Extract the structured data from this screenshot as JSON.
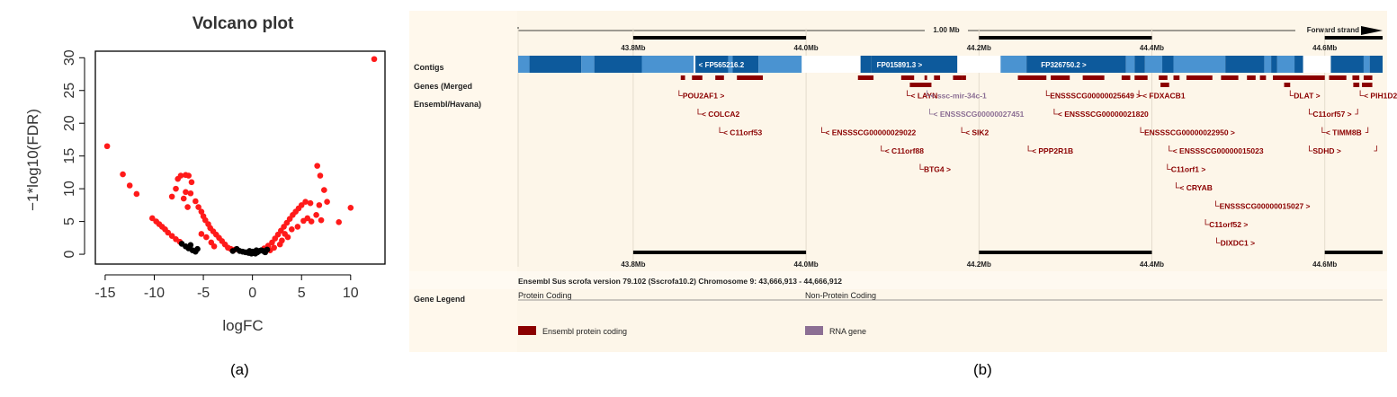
{
  "captions": {
    "a": "(a)",
    "b": "(b)"
  },
  "colors": {
    "sig_point": "#ff1a1a",
    "nonsig_point": "#000000",
    "protein_coding": "#8b0000",
    "rna_gene": "#8c6f94",
    "contig_dark": "#0d5a9c",
    "contig_light": "#4a93d1",
    "track_bg": "#fdf6e9",
    "label_bg": "#fff8ec"
  },
  "chart_data": [
    {
      "type": "scatter",
      "title": "Volcano plot",
      "xlabel": "logFC",
      "ylabel": "−1*log10(FDR)",
      "xlim": [
        -16,
        13.5
      ],
      "ylim": [
        -1.5,
        31
      ],
      "xticks": [
        -15,
        -10,
        -5,
        0,
        5,
        10
      ],
      "xtick_labels": [
        "-15",
        "-10",
        "-5",
        "0",
        "5",
        "10"
      ],
      "yticks": [
        0,
        5,
        10,
        15,
        20,
        25,
        30
      ],
      "yticks_labels": [
        "0",
        "5",
        "10",
        "15",
        "20",
        "25",
        "30"
      ],
      "series": [
        {
          "name": "significant",
          "color": "#ff1a1a",
          "points": [
            [
              -14.8,
              16.5
            ],
            [
              -13.2,
              12.2
            ],
            [
              -12.5,
              10.5
            ],
            [
              -11.8,
              9.2
            ],
            [
              -10.2,
              5.5
            ],
            [
              -9.8,
              5.0
            ],
            [
              -9.5,
              4.6
            ],
            [
              -9.2,
              4.2
            ],
            [
              -8.9,
              3.8
            ],
            [
              -8.6,
              3.3
            ],
            [
              -8.2,
              2.8
            ],
            [
              -7.8,
              2.3
            ],
            [
              -7.4,
              1.9
            ],
            [
              -8.2,
              8.8
            ],
            [
              -7.8,
              10.0
            ],
            [
              -7.6,
              11.5
            ],
            [
              -7.3,
              12.0
            ],
            [
              -6.8,
              12.1
            ],
            [
              -6.5,
              12.0
            ],
            [
              -6.2,
              11.0
            ],
            [
              -7.0,
              8.5
            ],
            [
              -6.6,
              7.2
            ],
            [
              -6.8,
              9.5
            ],
            [
              -6.3,
              9.3
            ],
            [
              -5.8,
              8.1
            ],
            [
              -5.5,
              7.2
            ],
            [
              -5.2,
              6.5
            ],
            [
              -5.0,
              5.8
            ],
            [
              -4.8,
              5.2
            ],
            [
              -4.5,
              4.6
            ],
            [
              -4.3,
              4.0
            ],
            [
              -4.0,
              3.5
            ],
            [
              -3.7,
              3.0
            ],
            [
              -3.4,
              2.5
            ],
            [
              -3.1,
              2.0
            ],
            [
              -5.2,
              3.1
            ],
            [
              -4.7,
              2.6
            ],
            [
              -4.2,
              1.8
            ],
            [
              -3.9,
              1.2
            ],
            [
              -2.8,
              1.5
            ],
            [
              -2.5,
              1.0
            ],
            [
              -2.2,
              0.8
            ],
            [
              -1.8,
              0.7
            ],
            [
              1.2,
              0.9
            ],
            [
              1.6,
              1.3
            ],
            [
              2.0,
              1.8
            ],
            [
              2.3,
              2.4
            ],
            [
              2.6,
              3.0
            ],
            [
              2.9,
              3.6
            ],
            [
              3.2,
              4.2
            ],
            [
              3.5,
              4.8
            ],
            [
              3.8,
              5.4
            ],
            [
              4.1,
              6.0
            ],
            [
              4.4,
              6.5
            ],
            [
              4.7,
              7.0
            ],
            [
              5.0,
              7.5
            ],
            [
              5.4,
              8.0
            ],
            [
              5.9,
              7.8
            ],
            [
              1.8,
              0.6
            ],
            [
              2.2,
              1.0
            ],
            [
              2.8,
              1.5
            ],
            [
              3.0,
              2.1
            ],
            [
              3.6,
              2.6
            ],
            [
              3.3,
              3.1
            ],
            [
              4.0,
              3.8
            ],
            [
              4.6,
              4.2
            ],
            [
              5.2,
              5.1
            ],
            [
              5.6,
              5.5
            ],
            [
              6.0,
              5.0
            ],
            [
              6.5,
              6.0
            ],
            [
              6.8,
              7.5
            ],
            [
              6.6,
              13.5
            ],
            [
              6.9,
              12.0
            ],
            [
              7.3,
              9.8
            ],
            [
              7.6,
              8.0
            ],
            [
              7.0,
              5.2
            ],
            [
              8.8,
              4.9
            ],
            [
              10.0,
              7.1
            ],
            [
              12.4,
              29.8
            ]
          ]
        },
        {
          "name": "not significant",
          "color": "#000000",
          "points": [
            [
              -7.2,
              1.6
            ],
            [
              -6.8,
              1.2
            ],
            [
              -6.5,
              0.9
            ],
            [
              -6.1,
              0.6
            ],
            [
              -5.8,
              0.4
            ],
            [
              -6.3,
              1.4
            ],
            [
              -5.6,
              0.8
            ],
            [
              -2.0,
              0.5
            ],
            [
              -1.6,
              0.8
            ],
            [
              -1.3,
              0.5
            ],
            [
              -1.0,
              0.4
            ],
            [
              -0.7,
              0.3
            ],
            [
              -0.4,
              0.2
            ],
            [
              -0.1,
              0.1
            ],
            [
              0.1,
              0.2
            ],
            [
              0.3,
              0.1
            ],
            [
              0.5,
              0.3
            ],
            [
              0.7,
              0.5
            ],
            [
              0.9,
              0.6
            ],
            [
              1.1,
              0.5
            ],
            [
              1.3,
              0.3
            ],
            [
              0.4,
              0.6
            ],
            [
              -0.3,
              0.5
            ],
            [
              0.0,
              0.4
            ],
            [
              1.5,
              0.7
            ]
          ]
        }
      ]
    },
    {
      "type": "genome-track",
      "scale_label": "1.00 Mb",
      "strand_label": "Forward strand",
      "region_start": 43666913,
      "region_end": 44666912,
      "position_ticks": [
        {
          "pos": 43800000,
          "label": "43.8Mb"
        },
        {
          "pos": 44000000,
          "label": "44.0Mb"
        },
        {
          "pos": 44200000,
          "label": "44.2Mb"
        },
        {
          "pos": 44400000,
          "label": "44.4Mb"
        },
        {
          "pos": 44600000,
          "label": "44.6Mb"
        }
      ],
      "track_labels": {
        "contigs": "Contigs",
        "genes_line1": "Genes (Merged",
        "genes_line2": "Ensembl/Havana)"
      },
      "contig_blocks": [
        {
          "start": 43666913,
          "end": 43680000,
          "tone": "light"
        },
        {
          "start": 43680000,
          "end": 43740000,
          "tone": "dark"
        },
        {
          "start": 43740000,
          "end": 43755000,
          "tone": "light"
        },
        {
          "start": 43755000,
          "end": 43810000,
          "tone": "dark"
        },
        {
          "start": 43810000,
          "end": 43870000,
          "tone": "light"
        },
        {
          "start": 43870000,
          "end": 43872000,
          "tone": "white"
        },
        {
          "start": 43872000,
          "end": 43910000,
          "tone": "dark"
        },
        {
          "start": 43910000,
          "end": 43915000,
          "tone": "light"
        },
        {
          "start": 43915000,
          "end": 43945000,
          "tone": "dark"
        },
        {
          "start": 43945000,
          "end": 43995000,
          "tone": "light"
        },
        {
          "start": 43995000,
          "end": 44063000,
          "tone": "white"
        },
        {
          "start": 44063000,
          "end": 44075000,
          "tone": "dark"
        },
        {
          "start": 44075000,
          "end": 44175000,
          "tone": "dark"
        },
        {
          "start": 44175000,
          "end": 44225000,
          "tone": "white"
        },
        {
          "start": 44225000,
          "end": 44255000,
          "tone": "light"
        },
        {
          "start": 44255000,
          "end": 44370000,
          "tone": "dark"
        },
        {
          "start": 44370000,
          "end": 44380000,
          "tone": "light"
        },
        {
          "start": 44380000,
          "end": 44392000,
          "tone": "dark"
        },
        {
          "start": 44392000,
          "end": 44412000,
          "tone": "light"
        },
        {
          "start": 44412000,
          "end": 44425000,
          "tone": "dark"
        },
        {
          "start": 44425000,
          "end": 44485000,
          "tone": "light"
        },
        {
          "start": 44485000,
          "end": 44530000,
          "tone": "dark"
        },
        {
          "start": 44530000,
          "end": 44538000,
          "tone": "light"
        },
        {
          "start": 44538000,
          "end": 44545000,
          "tone": "dark"
        },
        {
          "start": 44545000,
          "end": 44565000,
          "tone": "light"
        },
        {
          "start": 44565000,
          "end": 44575000,
          "tone": "dark"
        },
        {
          "start": 44575000,
          "end": 44607000,
          "tone": "white"
        },
        {
          "start": 44607000,
          "end": 44645000,
          "tone": "dark"
        },
        {
          "start": 44645000,
          "end": 44652000,
          "tone": "light"
        },
        {
          "start": 44652000,
          "end": 44666912,
          "tone": "dark"
        }
      ],
      "contig_labels": [
        {
          "text": "< FP565216.2",
          "pos": 43902000
        },
        {
          "text": "FP015891.3 >",
          "pos": 44108000
        },
        {
          "text": "FP326750.2 >",
          "pos": 44298000
        }
      ],
      "gene_blocks": [
        {
          "start": 43855000,
          "end": 43860000
        },
        {
          "start": 43868000,
          "end": 43880000
        },
        {
          "start": 43895000,
          "end": 43905000
        },
        {
          "start": 43920000,
          "end": 43950000
        },
        {
          "start": 44060000,
          "end": 44078000
        },
        {
          "start": 44110000,
          "end": 44125000
        },
        {
          "start": 44137000,
          "end": 44140000
        },
        {
          "start": 44148000,
          "end": 44155000
        },
        {
          "start": 44170000,
          "end": 44180000
        },
        {
          "start": 44180000,
          "end": 44185000
        },
        {
          "start": 44245000,
          "end": 44278000
        },
        {
          "start": 44283000,
          "end": 44305000
        },
        {
          "start": 44320000,
          "end": 44345000
        },
        {
          "start": 44365000,
          "end": 44375000
        },
        {
          "start": 44380000,
          "end": 44395000
        },
        {
          "start": 44408000,
          "end": 44418000
        },
        {
          "start": 44425000,
          "end": 44432000
        },
        {
          "start": 44440000,
          "end": 44470000
        },
        {
          "start": 44480000,
          "end": 44500000
        },
        {
          "start": 44510000,
          "end": 44520000
        },
        {
          "start": 44525000,
          "end": 44532000
        },
        {
          "start": 44540000,
          "end": 44600000
        },
        {
          "start": 44605000,
          "end": 44625000
        },
        {
          "start": 44632000,
          "end": 44640000
        },
        {
          "start": 44645000,
          "end": 44655000
        },
        {
          "start": 44633000,
          "end": 44640000,
          "row": 2
        },
        {
          "start": 44643000,
          "end": 44655000,
          "row": 2
        },
        {
          "start": 44120000,
          "end": 44145000,
          "row": 2
        },
        {
          "start": 44410000,
          "end": 44420000,
          "row": 2
        },
        {
          "start": 44553000,
          "end": 44560000,
          "row": 2
        }
      ],
      "gene_labels": [
        {
          "text": "POU2AF1 >",
          "pos": 43853000,
          "row": 1,
          "kind": "protein"
        },
        {
          "text": "< COLCA2",
          "pos": 43875000,
          "row": 2,
          "kind": "protein"
        },
        {
          "text": "< C11orf53",
          "pos": 43900000,
          "row": 3,
          "kind": "protein"
        },
        {
          "text": "< LAYN",
          "pos": 44117000,
          "row": 1,
          "kind": "protein"
        },
        {
          "text": "< ssc-mir-34c-1",
          "pos": 44140000,
          "row": 1,
          "kind": "rna"
        },
        {
          "text": "< ENSSSCG00000027451",
          "pos": 44143000,
          "row": 2,
          "kind": "rna"
        },
        {
          "text": "< ENSSSCG00000029022",
          "pos": 44018000,
          "row": 3,
          "kind": "protein"
        },
        {
          "text": "< SIK2",
          "pos": 44180000,
          "row": 3,
          "kind": "protein"
        },
        {
          "text": "< C11orf88",
          "pos": 44087000,
          "row": 4,
          "kind": "protein"
        },
        {
          "text": "< PPP2R1B",
          "pos": 44257000,
          "row": 4,
          "kind": "protein"
        },
        {
          "text": "BTG4 >",
          "pos": 44132000,
          "row": 5,
          "kind": "protein"
        },
        {
          "text": "ENSSSCG00000025649 >",
          "pos": 44278000,
          "row": 1,
          "kind": "protein"
        },
        {
          "text": "< FDXACB1",
          "pos": 44385000,
          "row": 1,
          "kind": "protein"
        },
        {
          "text": "< ENSSSCG00000021820",
          "pos": 44287000,
          "row": 2,
          "kind": "protein"
        },
        {
          "text": "ENSSSCG00000022950 >",
          "pos": 44387000,
          "row": 3,
          "kind": "protein"
        },
        {
          "text": "< ENSSSCG00000015023",
          "pos": 44420000,
          "row": 4,
          "kind": "protein"
        },
        {
          "text": "C11orf1 >",
          "pos": 44418000,
          "row": 5,
          "kind": "protein"
        },
        {
          "text": "< CRYAB",
          "pos": 44428000,
          "row": 6,
          "kind": "protein"
        },
        {
          "text": "ENSSSCG00000015027 >",
          "pos": 44474000,
          "row": 7,
          "kind": "protein"
        },
        {
          "text": "C11orf52 >",
          "pos": 44462000,
          "row": 8,
          "kind": "protein"
        },
        {
          "text": "DIXDC1 >",
          "pos": 44475000,
          "row": 9,
          "kind": "protein"
        },
        {
          "text": "DLAT >",
          "pos": 44560000,
          "row": 1,
          "kind": "protein"
        },
        {
          "text": "< PIH1D2",
          "pos": 44641000,
          "row": 1,
          "kind": "protein"
        },
        {
          "text": "C11orf57 >",
          "pos": 44582000,
          "row": 2,
          "kind": "protein"
        },
        {
          "text": "< TIMM8B",
          "pos": 44597000,
          "row": 3,
          "kind": "protein"
        },
        {
          "text": "SDHD >",
          "pos": 44582000,
          "row": 4,
          "kind": "protein"
        }
      ],
      "gene_hooks": [
        {
          "pos": 44638000,
          "row": 2
        },
        {
          "pos": 44650000,
          "row": 3
        },
        {
          "pos": 44660000,
          "row": 4
        }
      ],
      "assembly_text": "Ensembl Sus scrofa version 79.102 (Sscrofa10.2) Chromosome 9: 43,666,913 - 44,666,912",
      "legend": {
        "title": "Gene Legend",
        "group_protein": "Protein Coding",
        "group_nonprotein": "Non-Protein Coding",
        "item_protein": "Ensembl protein coding",
        "item_rna": "RNA gene"
      }
    }
  ]
}
